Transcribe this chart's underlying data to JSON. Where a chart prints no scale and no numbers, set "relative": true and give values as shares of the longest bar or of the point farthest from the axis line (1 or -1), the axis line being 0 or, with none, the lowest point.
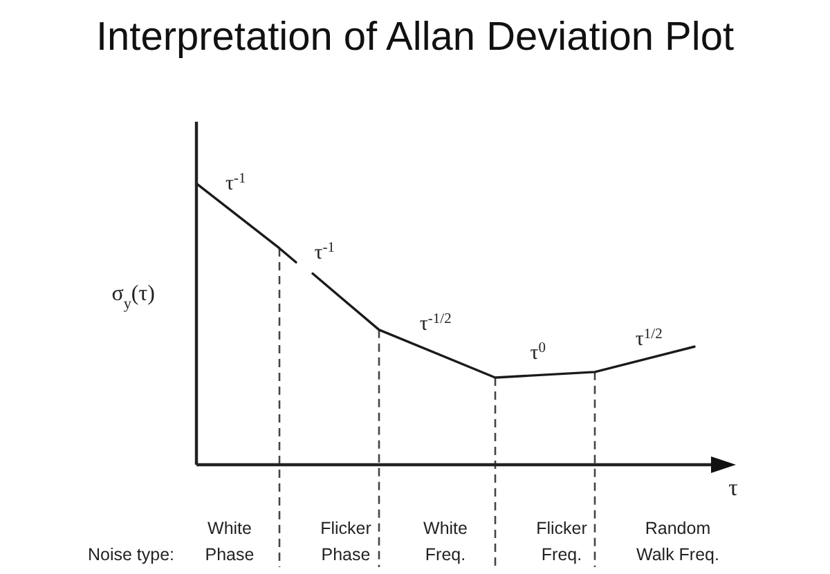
{
  "chart_data": {
    "type": "line",
    "title": "Interpretation of Allan Deviation Plot",
    "xlabel": "τ",
    "ylabel": "σ$_{y}$(τ)",
    "relative": true,
    "categories": [
      null,
      null,
      "White Phase",
      null,
      null,
      null,
      null,
      null,
      null,
      "Flicker Phase",
      null,
      null,
      null,
      null,
      null,
      "White Freq.",
      null,
      null,
      null,
      null,
      null,
      null,
      "Flicker Freq.",
      null,
      null,
      null,
      null,
      null,
      null,
      "Random Walk Freq.",
      null,
      null
    ],
    "series": [
      {
        "color": "#1a1a1a",
        "values": [
          1,
          null,
          null,
          null,
          null,
          0.77,
          0.72,
          null,
          null,
          null,
          null,
          null,
          null,
          null,
          null,
          null,
          null,
          null,
          null,
          null,
          null,
          null,
          null,
          null,
          null,
          null,
          null,
          null,
          null,
          null,
          null,
          null
        ]
      },
      {
        "color": "#1a1a1a",
        "values": [
          null,
          null,
          null,
          null,
          null,
          null,
          null,
          0.68,
          null,
          null,
          null,
          0.48,
          null,
          null,
          null,
          null,
          null,
          null,
          0.31,
          null,
          null,
          null,
          null,
          null,
          0.33,
          null,
          null,
          null,
          null,
          null,
          0.42,
          null
        ]
      }
    ],
    "annotations": [
      "τ$^{-1}$",
      "τ$^{-1}$",
      "τ$^{-1/2}$",
      "τ$^{0}$",
      "τ$^{1/2}$",
      "Noise type:"
    ]
  }
}
